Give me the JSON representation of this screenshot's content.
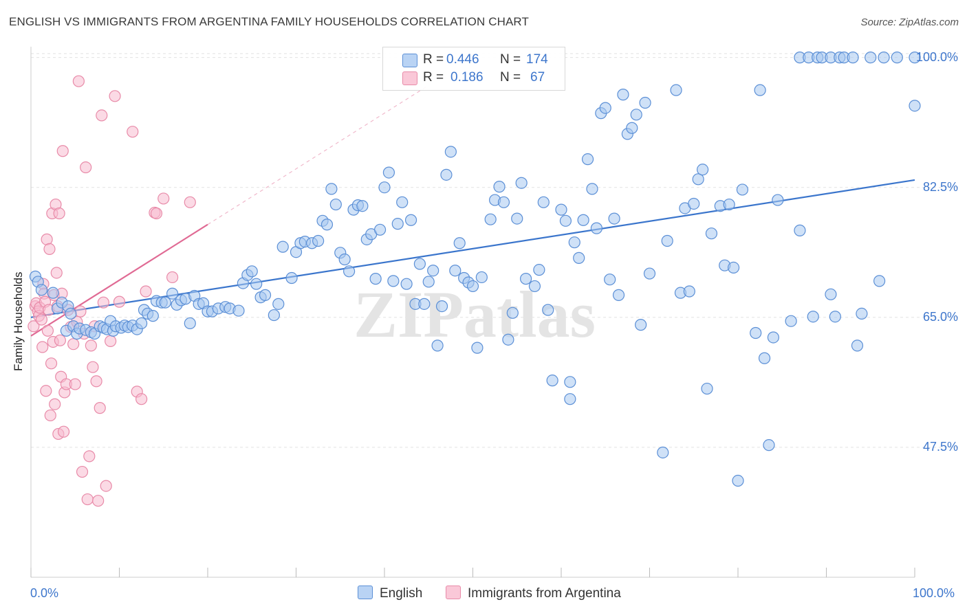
{
  "title": "ENGLISH VS IMMIGRANTS FROM ARGENTINA FAMILY HOUSEHOLDS CORRELATION CHART",
  "source": "Source: ZipAtlas.com",
  "watermark": "ZIPatlas",
  "colors": {
    "english_fill": "#a8c8f0",
    "english_stroke": "#5b8fd6",
    "english_line": "#3a75cc",
    "argentina_fill": "#f7bcd0",
    "argentina_stroke": "#e88aa8",
    "argentina_line": "#e06a94",
    "axis_text": "#3d76cc",
    "grid": "#e2e2e2"
  },
  "legend": {
    "rows": [
      {
        "r_label": "R =",
        "r_value": "0.446",
        "n_label": "N =",
        "n_value": "174"
      },
      {
        "r_label": "R =",
        "r_value": "0.186",
        "n_label": "N =",
        "n_value": "67"
      }
    ]
  },
  "bottom_legend": [
    "English",
    "Immigrants from Argentina"
  ],
  "chart_data": {
    "type": "scatter",
    "title": "ENGLISH VS IMMIGRANTS FROM ARGENTINA FAMILY HOUSEHOLDS CORRELATION CHART",
    "xlabel": "",
    "ylabel": "Family Households",
    "xlim": [
      0,
      100
    ],
    "ylim": [
      30,
      102
    ],
    "x_tick_labels": [
      "0.0%",
      "100.0%"
    ],
    "y_ticks": [
      47.5,
      65.0,
      82.5,
      100.0
    ],
    "y_tick_labels": [
      "47.5%",
      "65.0%",
      "82.5%",
      "100.0%"
    ],
    "series": [
      {
        "name": "English",
        "R": 0.446,
        "N": 174,
        "trend": {
          "x": [
            0,
            100
          ],
          "y": [
            65.0,
            83.5
          ]
        },
        "points": [
          [
            0.5,
            70.5
          ],
          [
            0.8,
            69.8
          ],
          [
            1.2,
            68.7
          ],
          [
            2.5,
            68.3
          ],
          [
            3.0,
            66.2
          ],
          [
            3.5,
            67.0
          ],
          [
            4.0,
            63.2
          ],
          [
            4.2,
            66.5
          ],
          [
            4.5,
            65.5
          ],
          [
            4.8,
            63.8
          ],
          [
            5.2,
            62.8
          ],
          [
            5.5,
            63.5
          ],
          [
            6.2,
            63.3
          ],
          [
            6.8,
            63.0
          ],
          [
            7.2,
            62.8
          ],
          [
            7.8,
            63.8
          ],
          [
            8.2,
            63.6
          ],
          [
            8.6,
            63.4
          ],
          [
            9.0,
            64.5
          ],
          [
            9.3,
            63.2
          ],
          [
            9.6,
            63.8
          ],
          [
            10.2,
            63.6
          ],
          [
            10.6,
            63.9
          ],
          [
            11.0,
            63.7
          ],
          [
            11.5,
            63.9
          ],
          [
            12.0,
            63.4
          ],
          [
            12.5,
            64.2
          ],
          [
            12.8,
            66.0
          ],
          [
            13.2,
            65.5
          ],
          [
            13.8,
            65.2
          ],
          [
            14.2,
            67.2
          ],
          [
            14.8,
            67.0
          ],
          [
            15.2,
            67.0
          ],
          [
            16.0,
            68.2
          ],
          [
            16.5,
            66.7
          ],
          [
            17.0,
            67.3
          ],
          [
            17.5,
            67.5
          ],
          [
            18.0,
            64.2
          ],
          [
            18.5,
            67.9
          ],
          [
            19.0,
            66.8
          ],
          [
            19.5,
            66.9
          ],
          [
            20.0,
            65.8
          ],
          [
            20.5,
            65.8
          ],
          [
            21.2,
            66.2
          ],
          [
            22.0,
            66.4
          ],
          [
            22.5,
            66.2
          ],
          [
            23.5,
            65.9
          ],
          [
            24.0,
            69.6
          ],
          [
            24.5,
            70.7
          ],
          [
            25.0,
            71.2
          ],
          [
            25.5,
            69.5
          ],
          [
            26.0,
            67.7
          ],
          [
            26.5,
            68.0
          ],
          [
            27.5,
            65.3
          ],
          [
            28.0,
            66.8
          ],
          [
            28.5,
            74.5
          ],
          [
            29.5,
            70.3
          ],
          [
            30.0,
            73.8
          ],
          [
            30.5,
            75.0
          ],
          [
            31.0,
            75.2
          ],
          [
            31.8,
            75.0
          ],
          [
            32.5,
            75.3
          ],
          [
            33.0,
            78.0
          ],
          [
            33.5,
            77.5
          ],
          [
            34.0,
            82.3
          ],
          [
            34.5,
            80.2
          ],
          [
            35.0,
            73.7
          ],
          [
            35.5,
            72.8
          ],
          [
            36.0,
            71.2
          ],
          [
            36.5,
            79.5
          ],
          [
            37.0,
            80.1
          ],
          [
            37.5,
            80.0
          ],
          [
            38.0,
            75.5
          ],
          [
            38.5,
            76.2
          ],
          [
            39.0,
            70.2
          ],
          [
            39.5,
            76.8
          ],
          [
            40.0,
            82.5
          ],
          [
            40.5,
            84.5
          ],
          [
            41.0,
            69.9
          ],
          [
            41.5,
            77.6
          ],
          [
            42.0,
            80.5
          ],
          [
            42.5,
            69.5
          ],
          [
            43.0,
            78.1
          ],
          [
            43.5,
            66.8
          ],
          [
            44.0,
            72.2
          ],
          [
            44.5,
            66.8
          ],
          [
            45.0,
            69.8
          ],
          [
            45.5,
            71.3
          ],
          [
            46.0,
            61.2
          ],
          [
            46.5,
            66.5
          ],
          [
            47.0,
            84.2
          ],
          [
            47.5,
            87.3
          ],
          [
            48.0,
            71.3
          ],
          [
            48.5,
            75.0
          ],
          [
            49.0,
            70.3
          ],
          [
            49.5,
            69.7
          ],
          [
            50.0,
            69.2
          ],
          [
            50.5,
            60.9
          ],
          [
            51.0,
            70.4
          ],
          [
            52.0,
            78.2
          ],
          [
            52.5,
            80.8
          ],
          [
            53.0,
            82.6
          ],
          [
            53.5,
            80.5
          ],
          [
            54.0,
            62.0
          ],
          [
            54.5,
            65.6
          ],
          [
            55.0,
            78.3
          ],
          [
            55.5,
            83.1
          ],
          [
            56.0,
            70.2
          ],
          [
            57.0,
            69.2
          ],
          [
            57.5,
            71.4
          ],
          [
            58.0,
            80.5
          ],
          [
            58.5,
            66.0
          ],
          [
            59.0,
            56.5
          ],
          [
            60.0,
            79.5
          ],
          [
            60.5,
            78.0
          ],
          [
            61.0,
            56.3
          ],
          [
            61.0,
            54.0
          ],
          [
            61.5,
            75.1
          ],
          [
            62.0,
            73.0
          ],
          [
            62.5,
            78.1
          ],
          [
            63.0,
            86.3
          ],
          [
            63.5,
            82.3
          ],
          [
            64.0,
            77.0
          ],
          [
            64.5,
            92.5
          ],
          [
            65.0,
            93.2
          ],
          [
            65.5,
            70.1
          ],
          [
            66.0,
            78.3
          ],
          [
            66.5,
            68.0
          ],
          [
            67.0,
            95.0
          ],
          [
            67.5,
            89.7
          ],
          [
            68.0,
            90.5
          ],
          [
            68.5,
            92.3
          ],
          [
            69.0,
            64.0
          ],
          [
            69.5,
            93.9
          ],
          [
            70.0,
            70.9
          ],
          [
            71.5,
            46.8
          ],
          [
            72.0,
            75.3
          ],
          [
            73.0,
            95.6
          ],
          [
            73.5,
            68.3
          ],
          [
            74.0,
            79.7
          ],
          [
            74.5,
            68.5
          ],
          [
            75.0,
            80.3
          ],
          [
            75.5,
            83.6
          ],
          [
            76.0,
            84.9
          ],
          [
            76.5,
            55.4
          ],
          [
            77.0,
            76.3
          ],
          [
            78.0,
            80.0
          ],
          [
            78.5,
            72.0
          ],
          [
            79.0,
            80.2
          ],
          [
            79.5,
            71.7
          ],
          [
            80.0,
            43.0
          ],
          [
            80.5,
            82.2
          ],
          [
            82.0,
            62.9
          ],
          [
            82.5,
            95.6
          ],
          [
            83.0,
            59.5
          ],
          [
            83.5,
            47.8
          ],
          [
            84.0,
            62.3
          ],
          [
            84.5,
            80.8
          ],
          [
            86.0,
            64.5
          ],
          [
            87.0,
            76.7
          ],
          [
            87.0,
            100.0
          ],
          [
            88.0,
            100.0
          ],
          [
            89.0,
            100.0
          ],
          [
            89.5,
            100.0
          ],
          [
            90.5,
            100.0
          ],
          [
            91.5,
            100.0
          ],
          [
            92.0,
            100.0
          ],
          [
            93.0,
            100.0
          ],
          [
            95.0,
            100.0
          ],
          [
            96.5,
            100.0
          ],
          [
            100.0,
            100.0
          ],
          [
            98.0,
            100.0
          ],
          [
            88.5,
            65.1
          ],
          [
            90.5,
            68.1
          ],
          [
            91.0,
            65.1
          ],
          [
            93.5,
            61.2
          ],
          [
            94.0,
            65.5
          ],
          [
            96.0,
            69.9
          ],
          [
            100.0,
            93.5
          ]
        ]
      },
      {
        "name": "Immigrants from Argentina",
        "R": 0.186,
        "N": 67,
        "trend": {
          "x": [
            0,
            20
          ],
          "y": [
            62.5,
            77.5
          ]
        },
        "points": [
          [
            0.3,
            63.8
          ],
          [
            0.5,
            66.5
          ],
          [
            0.6,
            66.9
          ],
          [
            0.8,
            65.8
          ],
          [
            0.9,
            65.2
          ],
          [
            1.0,
            66.3
          ],
          [
            1.2,
            64.7
          ],
          [
            1.3,
            61.0
          ],
          [
            1.4,
            69.5
          ],
          [
            1.5,
            68.2
          ],
          [
            1.6,
            67.1
          ],
          [
            1.7,
            55.1
          ],
          [
            1.8,
            75.5
          ],
          [
            1.9,
            63.2
          ],
          [
            2.0,
            66.0
          ],
          [
            2.1,
            74.2
          ],
          [
            2.2,
            51.8
          ],
          [
            2.3,
            58.8
          ],
          [
            2.4,
            79.0
          ],
          [
            2.5,
            61.7
          ],
          [
            2.6,
            68.0
          ],
          [
            2.7,
            53.3
          ],
          [
            2.8,
            80.2
          ],
          [
            2.9,
            71.0
          ],
          [
            3.0,
            66.5
          ],
          [
            3.1,
            49.3
          ],
          [
            3.2,
            79.0
          ],
          [
            3.3,
            61.9
          ],
          [
            3.4,
            57.0
          ],
          [
            3.5,
            68.2
          ],
          [
            3.6,
            87.4
          ],
          [
            3.7,
            49.6
          ],
          [
            3.8,
            54.9
          ],
          [
            4.0,
            56.0
          ],
          [
            4.2,
            66.0
          ],
          [
            4.5,
            63.7
          ],
          [
            4.8,
            61.4
          ],
          [
            5.0,
            56.0
          ],
          [
            5.2,
            64.4
          ],
          [
            5.4,
            96.8
          ],
          [
            5.6,
            65.8
          ],
          [
            5.8,
            44.2
          ],
          [
            6.0,
            62.8
          ],
          [
            6.2,
            85.2
          ],
          [
            6.4,
            40.5
          ],
          [
            6.6,
            46.3
          ],
          [
            6.8,
            61.2
          ],
          [
            7.0,
            58.3
          ],
          [
            7.2,
            63.8
          ],
          [
            7.4,
            56.4
          ],
          [
            7.6,
            40.3
          ],
          [
            7.8,
            52.8
          ],
          [
            8.0,
            92.2
          ],
          [
            8.2,
            67.0
          ],
          [
            8.5,
            42.3
          ],
          [
            9.0,
            61.8
          ],
          [
            9.5,
            94.8
          ],
          [
            10.0,
            67.1
          ],
          [
            11.5,
            90.0
          ],
          [
            12.0,
            55.0
          ],
          [
            12.5,
            54.0
          ],
          [
            13.0,
            68.5
          ],
          [
            14.0,
            79.1
          ],
          [
            14.2,
            79.0
          ],
          [
            15.0,
            81.0
          ],
          [
            16.0,
            70.4
          ],
          [
            18.0,
            80.5
          ]
        ]
      }
    ]
  }
}
